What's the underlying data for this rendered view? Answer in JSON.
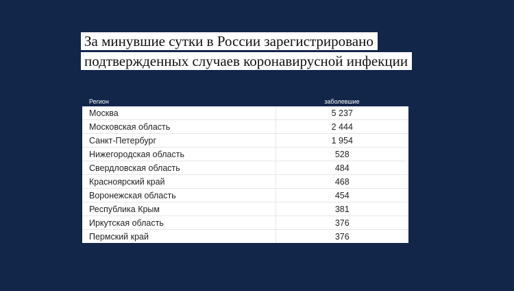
{
  "headline": {
    "line1": "За минувшие сутки в России зарегистрировано",
    "line2": "подтвержденных случаев коронавирусной инфекции"
  },
  "table": {
    "headers": [
      "Регион",
      "заболевшие"
    ],
    "rows": [
      {
        "region": "Москва",
        "value": "5 237"
      },
      {
        "region": "Московская область",
        "value": "2 444"
      },
      {
        "region": "Санкт-Петербург",
        "value": "1 954"
      },
      {
        "region": "Нижегородская область",
        "value": "528"
      },
      {
        "region": "Свердловская область",
        "value": "484"
      },
      {
        "region": "Красноярский край",
        "value": "468"
      },
      {
        "region": "Воронежская область",
        "value": "454"
      },
      {
        "region": "Республика Крым",
        "value": "381"
      },
      {
        "region": "Иркутская область",
        "value": "376"
      },
      {
        "region": "Пермский край",
        "value": "376"
      }
    ]
  },
  "colors": {
    "background": "#12264a",
    "panel": "#ffffff"
  }
}
